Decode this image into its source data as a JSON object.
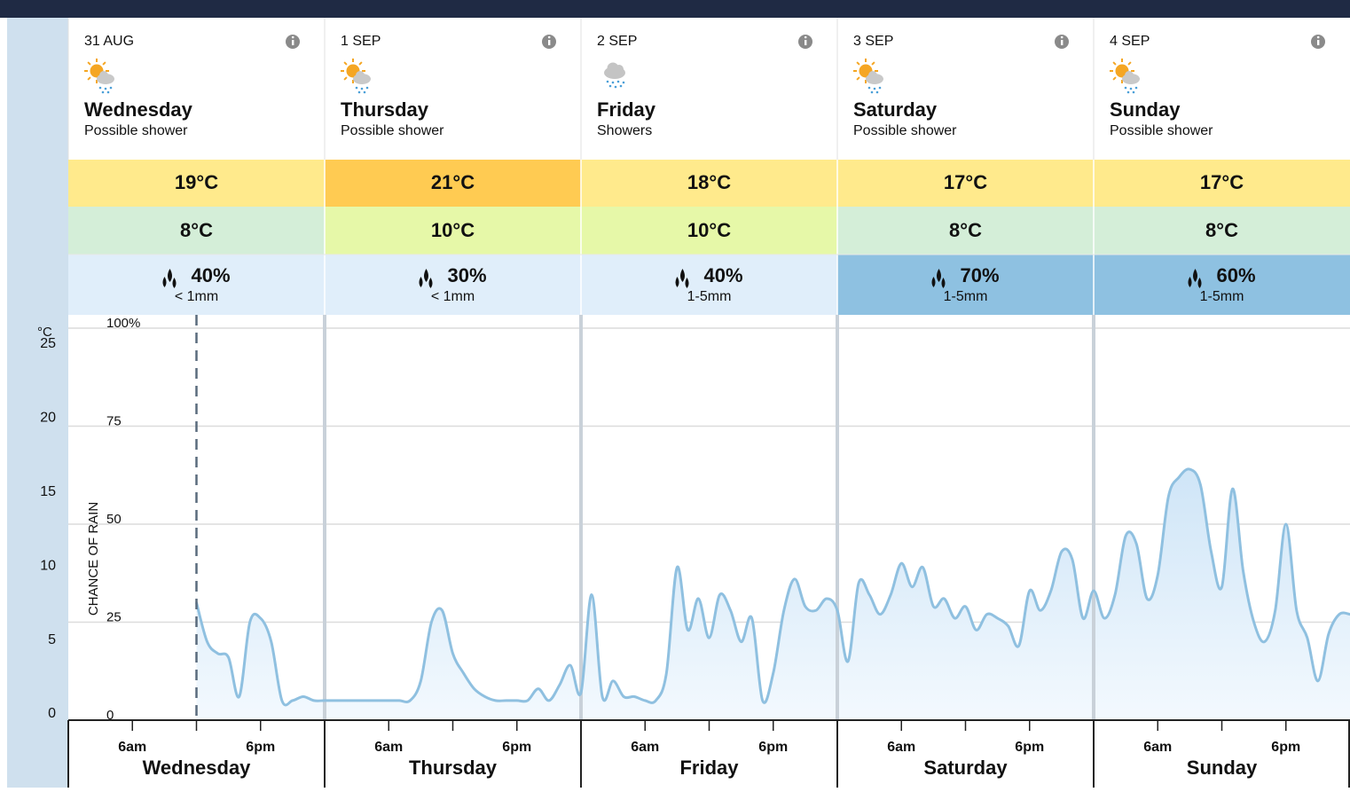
{
  "days": [
    {
      "date": "31 AUG",
      "name": "Wednesday",
      "desc": "Possible shower",
      "icon": "sun-shower",
      "max": "19°C",
      "max_color": "#ffea8c",
      "min": "8°C",
      "min_color": "#d4eed8",
      "rain": "40%",
      "rain_color": "#e0eefa",
      "amount": "< 1mm"
    },
    {
      "date": "1 SEP",
      "name": "Thursday",
      "desc": "Possible shower",
      "icon": "sun-shower",
      "max": "21°C",
      "max_color": "#ffcb52",
      "min": "10°C",
      "min_color": "#e6f8a8",
      "rain": "30%",
      "rain_color": "#e0eefa",
      "amount": "< 1mm"
    },
    {
      "date": "2 SEP",
      "name": "Friday",
      "desc": "Showers",
      "icon": "shower",
      "max": "18°C",
      "max_color": "#ffea8c",
      "min": "10°C",
      "min_color": "#e6f8a8",
      "rain": "40%",
      "rain_color": "#e0eefa",
      "amount": "1-5mm"
    },
    {
      "date": "3 SEP",
      "name": "Saturday",
      "desc": "Possible shower",
      "icon": "sun-shower",
      "max": "17°C",
      "max_color": "#ffea8c",
      "min": "8°C",
      "min_color": "#d4eed8",
      "rain": "70%",
      "rain_color": "#8ec1e1",
      "amount": "1-5mm"
    },
    {
      "date": "4 SEP",
      "name": "Sunday",
      "desc": "Possible shower",
      "icon": "sun-shower",
      "max": "17°C",
      "max_color": "#ffea8c",
      "min": "8°C",
      "min_color": "#d4eed8",
      "rain": "60%",
      "rain_color": "#8ec1e1",
      "amount": "1-5mm"
    }
  ],
  "chart_data": {
    "type": "area",
    "ylabel": "CHANCE OF RAIN",
    "y2label": "°C",
    "color": "#8fc0e0",
    "grid": true,
    "xlim": [
      0,
      120
    ],
    "ylim": [
      0,
      100
    ],
    "yticks": [
      0,
      25,
      50,
      75,
      {
        "value": 100,
        "label": "100%"
      }
    ],
    "y2lim": [
      0,
      26.5
    ],
    "y2ticks": [
      0,
      5,
      10,
      15,
      20,
      25
    ],
    "xticks": [
      {
        "value": 6,
        "label": "6am"
      },
      {
        "value": 18,
        "label": "6pm"
      },
      {
        "value": 30,
        "label": "6am"
      },
      {
        "value": 42,
        "label": "6pm"
      },
      {
        "value": 54,
        "label": "6am"
      },
      {
        "value": 66,
        "label": "6pm"
      },
      {
        "value": 78,
        "label": "6am"
      },
      {
        "value": 90,
        "label": "6pm"
      },
      {
        "value": 102,
        "label": "6am"
      },
      {
        "value": 114,
        "label": "6pm"
      }
    ],
    "x_groups": [
      "Wednesday",
      "Thursday",
      "Friday",
      "Saturday",
      "Sunday"
    ],
    "now": 12,
    "x": [
      12,
      13,
      14,
      15,
      16,
      17,
      18,
      19,
      20,
      21,
      22,
      23,
      24,
      25,
      26,
      27,
      28,
      29,
      30,
      31,
      32,
      33,
      34,
      35,
      36,
      37,
      38,
      39,
      40,
      41,
      42,
      43,
      44,
      45,
      46,
      47,
      48,
      49,
      50,
      51,
      52,
      53,
      54,
      55,
      56,
      57,
      58,
      59,
      60,
      61,
      62,
      63,
      64,
      65,
      66,
      67,
      68,
      69,
      70,
      71,
      72,
      73,
      74,
      75,
      76,
      77,
      78,
      79,
      80,
      81,
      82,
      83,
      84,
      85,
      86,
      87,
      88,
      89,
      90,
      91,
      92,
      93,
      94,
      95,
      96,
      97,
      98,
      99,
      100,
      101,
      102,
      103,
      104,
      105,
      106,
      107,
      108,
      109,
      110,
      111,
      112,
      113,
      114,
      115,
      116,
      117,
      118,
      119,
      120
    ],
    "values": [
      30,
      20,
      17,
      16,
      6,
      25,
      26,
      20,
      5,
      5,
      6,
      5,
      5,
      5,
      5,
      5,
      5,
      5,
      5,
      5,
      5,
      10,
      25,
      28,
      17,
      12,
      8,
      6,
      5,
      5,
      5,
      5,
      8,
      5,
      9,
      14,
      7,
      32,
      6,
      10,
      6,
      6,
      5,
      5,
      12,
      39,
      23,
      31,
      21,
      32,
      28,
      20,
      26,
      5,
      12,
      28,
      36,
      29,
      28,
      31,
      28,
      15,
      35,
      32,
      27,
      32,
      40,
      34,
      39,
      29,
      31,
      26,
      29,
      23,
      27,
      26,
      24,
      19,
      33,
      28,
      33,
      43,
      41,
      26,
      33,
      26,
      32,
      47,
      45,
      31,
      37,
      57,
      62,
      64,
      60,
      43,
      34,
      59,
      38,
      25,
      20,
      28,
      50,
      28,
      21,
      10,
      22,
      27,
      27
    ]
  }
}
